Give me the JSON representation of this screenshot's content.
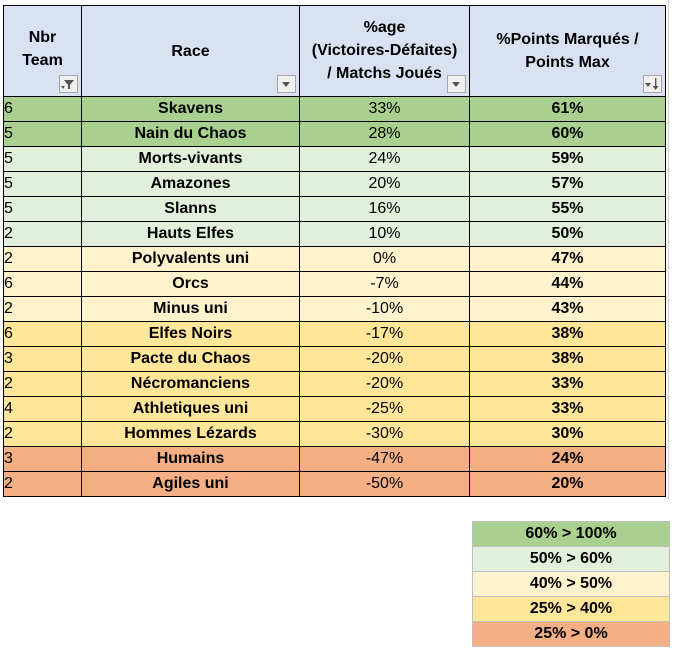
{
  "headers": {
    "nbr_team": [
      "Nbr",
      "Team"
    ],
    "race": "Race",
    "pct_age": [
      "%age",
      "(Victoires-Défaites)",
      "/ Matchs Joués"
    ],
    "pct_points": [
      "%Points Marqués /",
      "Points Max"
    ]
  },
  "rows": [
    {
      "nbr": "6",
      "race": "Skavens",
      "pct": "33%",
      "points": "61%",
      "tier": "g1"
    },
    {
      "nbr": "5",
      "race": "Nain du Chaos",
      "pct": "28%",
      "points": "60%",
      "tier": "g1"
    },
    {
      "nbr": "5",
      "race": "Morts-vivants",
      "pct": "24%",
      "points": "59%",
      "tier": "g2"
    },
    {
      "nbr": "5",
      "race": "Amazones",
      "pct": "20%",
      "points": "57%",
      "tier": "g2"
    },
    {
      "nbr": "5",
      "race": "Slanns",
      "pct": "16%",
      "points": "55%",
      "tier": "g2"
    },
    {
      "nbr": "2",
      "race": "Hauts Elfes",
      "pct": "10%",
      "points": "50%",
      "tier": "g2"
    },
    {
      "nbr": "2",
      "race": "Polyvalents uni",
      "pct": "0%",
      "points": "47%",
      "tier": "y1"
    },
    {
      "nbr": "6",
      "race": "Orcs",
      "pct": "-7%",
      "points": "44%",
      "tier": "y1"
    },
    {
      "nbr": "2",
      "race": "Minus uni",
      "pct": "-10%",
      "points": "43%",
      "tier": "y1"
    },
    {
      "nbr": "6",
      "race": "Elfes Noirs",
      "pct": "-17%",
      "points": "38%",
      "tier": "y2"
    },
    {
      "nbr": "3",
      "race": "Pacte du Chaos",
      "pct": "-20%",
      "points": "38%",
      "tier": "y2"
    },
    {
      "nbr": "2",
      "race": "Nécromanciens",
      "pct": "-20%",
      "points": "33%",
      "tier": "y2"
    },
    {
      "nbr": "4",
      "race": "Athletiques uni",
      "pct": "-25%",
      "points": "33%",
      "tier": "y2"
    },
    {
      "nbr": "2",
      "race": "Hommes Lézards",
      "pct": "-30%",
      "points": "30%",
      "tier": "y2"
    },
    {
      "nbr": "3",
      "race": "Humains",
      "pct": "-47%",
      "points": "24%",
      "tier": "o1"
    },
    {
      "nbr": "2",
      "race": "Agiles uni",
      "pct": "-50%",
      "points": "20%",
      "tier": "o1"
    }
  ],
  "legend": [
    {
      "label": "60% > 100%",
      "tier": "g1"
    },
    {
      "label": "50% > 60%",
      "tier": "g2"
    },
    {
      "label": "40% > 50%",
      "tier": "y1"
    },
    {
      "label": "25% > 40%",
      "tier": "y2"
    },
    {
      "label": "25% > 0%",
      "tier": "o1"
    }
  ],
  "colors": {
    "header_bg": "#d9e1f2",
    "g1": "#a9d08e",
    "g2": "#e2efda",
    "y1": "#fff2cc",
    "y2": "#ffe699",
    "o1": "#f4b084"
  },
  "icons": {
    "col0": "filter-active-icon",
    "col1": "dropdown-arrow-icon",
    "col2": "dropdown-arrow-icon",
    "col3": "sort-descending-icon"
  }
}
